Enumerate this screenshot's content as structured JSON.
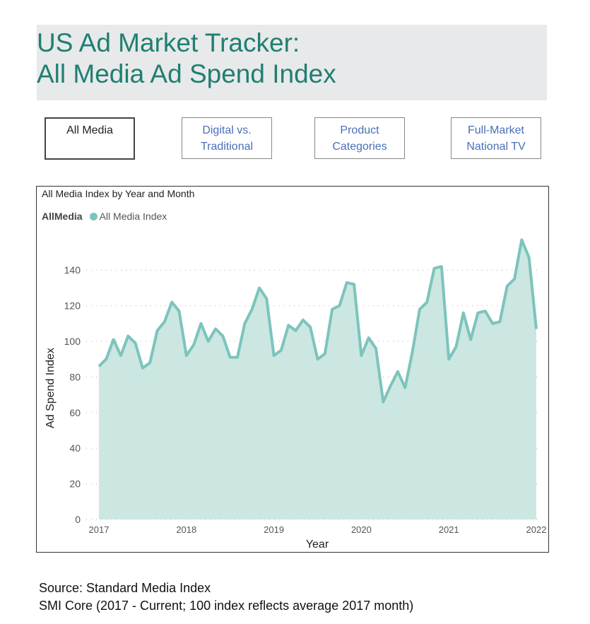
{
  "header": {
    "line1": "US Ad Market Tracker:",
    "line2": "All Media Ad Spend Index"
  },
  "nav": [
    {
      "label1": "All Media",
      "label2": ""
    },
    {
      "label1": "Digital vs.",
      "label2": "Traditional"
    },
    {
      "label1": "Product",
      "label2": "Categories"
    },
    {
      "label1": "Full-Market",
      "label2": "National TV"
    }
  ],
  "footer": {
    "line1": "Source: Standard Media Index",
    "line2": "SMI Core (2017 - Current; 100 index reflects average 2017 month)"
  },
  "colors": {
    "line": "#7cc4bc",
    "area": "#cce6e2",
    "title": "#1f7f72"
  },
  "chart_data": {
    "type": "area",
    "title": "All Media Index by Year and Month",
    "legend_title": "AllMedia",
    "legend_position": "top-left",
    "xlabel": "Year",
    "ylabel": "Ad Spend Index",
    "ylim": [
      0,
      160
    ],
    "yticks": [
      0,
      20,
      40,
      60,
      80,
      100,
      120,
      140
    ],
    "xticks": [
      "2017",
      "2018",
      "2019",
      "2020",
      "2021",
      "2022"
    ],
    "grid": true,
    "series": [
      {
        "name": "All Media Index",
        "start": "2017-01",
        "frequency": "monthly",
        "values": [
          86,
          90,
          101,
          92,
          103,
          99,
          85,
          88,
          106,
          111,
          122,
          117,
          92,
          98,
          110,
          100,
          107,
          103,
          91,
          91,
          110,
          118,
          130,
          124,
          92,
          95,
          109,
          106,
          112,
          108,
          90,
          93,
          118,
          120,
          133,
          132,
          92,
          102,
          96,
          66,
          75,
          83,
          74,
          94,
          118,
          122,
          141,
          142,
          90,
          97,
          116,
          101,
          116,
          117,
          110,
          111,
          131,
          135,
          157,
          147,
          107
        ]
      }
    ]
  }
}
